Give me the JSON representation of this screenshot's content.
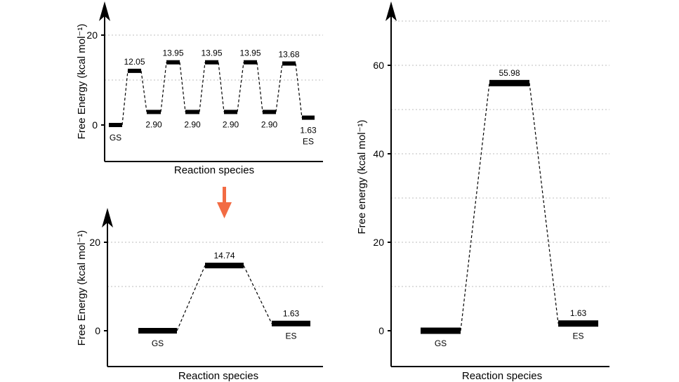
{
  "colors": {
    "axis": "#000000",
    "grid": "#bdbdbd",
    "level": "#000000",
    "connector": "#000000",
    "arrow": "#f26b43"
  },
  "chart_data": [
    {
      "type": "line",
      "id": "top-left",
      "xlabel": "Reaction species",
      "ylabel": "Free Energy (kcal mol⁻¹)",
      "ylim": [
        -8,
        27
      ],
      "yticks": [
        0,
        20
      ],
      "grid": true,
      "levels": [
        {
          "label": "GS",
          "value": 0,
          "label_pos": "below",
          "label_text": "GS"
        },
        {
          "label": "",
          "value": 12.05,
          "label_pos": "above",
          "label_text": "12.05"
        },
        {
          "label": "",
          "value": 2.9,
          "label_pos": "below",
          "label_text": "2.90"
        },
        {
          "label": "",
          "value": 13.95,
          "label_pos": "above",
          "label_text": "13.95"
        },
        {
          "label": "",
          "value": 2.9,
          "label_pos": "below",
          "label_text": "2.90"
        },
        {
          "label": "",
          "value": 13.95,
          "label_pos": "above",
          "label_text": "13.95"
        },
        {
          "label": "",
          "value": 2.9,
          "label_pos": "below",
          "label_text": "2.90"
        },
        {
          "label": "",
          "value": 13.95,
          "label_pos": "above",
          "label_text": "13.95"
        },
        {
          "label": "",
          "value": 2.9,
          "label_pos": "below",
          "label_text": "2.90"
        },
        {
          "label": "",
          "value": 13.68,
          "label_pos": "above",
          "label_text": "13.68"
        },
        {
          "label": "ES",
          "value": 1.63,
          "label_pos": "below",
          "label_text": "1.63",
          "sublabel": "ES"
        }
      ]
    },
    {
      "type": "line",
      "id": "bottom-left",
      "xlabel": "Reaction species",
      "ylabel": "Free Energy (kcal mol⁻¹)",
      "ylim": [
        -8,
        27
      ],
      "yticks": [
        0,
        20
      ],
      "grid": true,
      "levels": [
        {
          "label": "GS",
          "value": 0,
          "label_pos": "below",
          "label_text": "GS"
        },
        {
          "label": "",
          "value": 14.74,
          "label_pos": "above",
          "label_text": "14.74"
        },
        {
          "label": "ES",
          "value": 1.63,
          "label_pos": "above",
          "label_text": "1.63",
          "sublabel": "ES"
        }
      ]
    },
    {
      "type": "line",
      "id": "right",
      "xlabel": "Reaction species",
      "ylabel": "Free energy (kcal mol⁻¹)",
      "ylim": [
        -8,
        71
      ],
      "yticks": [
        0,
        20,
        40,
        60
      ],
      "grid": true,
      "levels": [
        {
          "label": "GS",
          "value": 0,
          "label_pos": "below",
          "label_text": "GS"
        },
        {
          "label": "",
          "value": 55.98,
          "label_pos": "above",
          "label_text": "55.98"
        },
        {
          "label": "ES",
          "value": 1.63,
          "label_pos": "above",
          "label_text": "1.63",
          "sublabel": "ES"
        }
      ]
    }
  ]
}
